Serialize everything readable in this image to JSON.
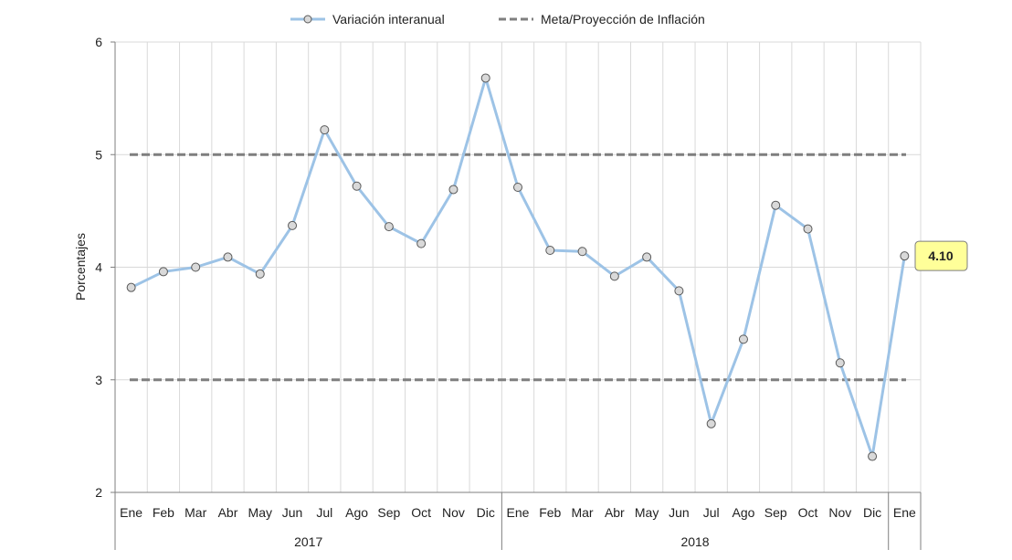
{
  "chart_data": {
    "type": "line",
    "ylabel": "Porcentajes",
    "ylim": [
      2,
      6
    ],
    "yticks": [
      "2",
      "3",
      "4",
      "5",
      "6"
    ],
    "categories": [
      "Ene",
      "Feb",
      "Mar",
      "Abr",
      "May",
      "Jun",
      "Jul",
      "Ago",
      "Sep",
      "Oct",
      "Nov",
      "Dic",
      "Ene",
      "Feb",
      "Mar",
      "Abr",
      "May",
      "Jun",
      "Jul",
      "Ago",
      "Sep",
      "Oct",
      "Nov",
      "Dic",
      "Ene"
    ],
    "groups": [
      {
        "label": "2017",
        "span": 12
      },
      {
        "label": "2018",
        "span": 12
      },
      {
        "label": "",
        "span": 1
      }
    ],
    "series": [
      {
        "name": "Variación interanual",
        "color": "#9dc3e6",
        "values": [
          3.82,
          3.96,
          4.0,
          4.09,
          3.94,
          4.37,
          5.22,
          4.72,
          4.36,
          4.21,
          4.69,
          5.68,
          4.71,
          4.15,
          4.14,
          3.92,
          4.09,
          3.79,
          2.61,
          3.36,
          4.55,
          4.34,
          3.15,
          2.32,
          4.1
        ]
      }
    ],
    "target": {
      "name": "Meta/Proyección de Inflación",
      "color": "#7f7f7f",
      "upper": 5,
      "lower": 3
    },
    "callout": {
      "label": "4.10",
      "index": 24,
      "fill": "#ffff99"
    },
    "grid": true,
    "legend_position": "top"
  }
}
